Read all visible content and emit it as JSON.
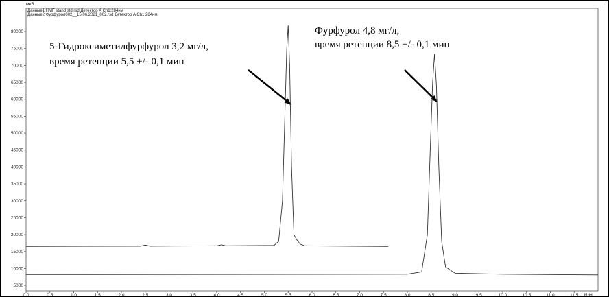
{
  "chart_data": {
    "type": "line",
    "y_label": "мкВ",
    "x_label": "мин",
    "xlim": [
      0,
      12.0
    ],
    "ylim": [
      3400,
      86900
    ],
    "xticks": [
      {
        "value": 0,
        "label": "0.0"
      },
      {
        "value": 0.5,
        "label": "0.5"
      },
      {
        "value": 1,
        "label": "1.0"
      },
      {
        "value": 1.5,
        "label": "1.5"
      },
      {
        "value": 2,
        "label": "2.0"
      },
      {
        "value": 2.5,
        "label": "2.5"
      },
      {
        "value": 3,
        "label": "3.0"
      },
      {
        "value": 3.5,
        "label": "3.5"
      },
      {
        "value": 4,
        "label": "4.0"
      },
      {
        "value": 4.5,
        "label": "4.5"
      },
      {
        "value": 5,
        "label": "5.0"
      },
      {
        "value": 5.5,
        "label": "5.5"
      },
      {
        "value": 6,
        "label": "6.0"
      },
      {
        "value": 6.5,
        "label": "6.5"
      },
      {
        "value": 7,
        "label": "7.0"
      },
      {
        "value": 7.5,
        "label": "7.5"
      },
      {
        "value": 8,
        "label": "8.0"
      },
      {
        "value": 8.5,
        "label": "8.5"
      },
      {
        "value": 9,
        "label": "9.0"
      },
      {
        "value": 9.5,
        "label": "9.5"
      },
      {
        "value": 10,
        "label": "10.0"
      },
      {
        "value": 10.5,
        "label": "10.5"
      },
      {
        "value": 11,
        "label": "11.0"
      },
      {
        "value": 11.5,
        "label": "11.5"
      }
    ],
    "yticks": [
      5000,
      10000,
      15000,
      20000,
      25000,
      30000,
      35000,
      40000,
      45000,
      50000,
      55000,
      60000,
      65000,
      70000,
      75000,
      80000
    ],
    "series": [
      {
        "name": "Данные1:HMF stand std.rsd Детектор A Ch1:284нм",
        "color": "#333333",
        "x": [
          0,
          2.4,
          2.5,
          2.6,
          4.0,
          4.1,
          4.2,
          5.2,
          5.3,
          5.38,
          5.43,
          5.47,
          5.5,
          5.53,
          5.57,
          5.62,
          5.68,
          5.75,
          5.85,
          7.6
        ],
        "values": [
          16500,
          16600,
          16900,
          16600,
          16700,
          17000,
          16700,
          16800,
          18000,
          30000,
          55000,
          75000,
          81800,
          70000,
          40000,
          20000,
          18500,
          17200,
          16700,
          16500
        ]
      },
      {
        "name": "Данные2:Фурфурол002__15.06.2021_002.rsd Детектор A Ch1:284нм",
        "color": "#333333",
        "x": [
          0,
          8.0,
          8.3,
          8.42,
          8.48,
          8.53,
          8.57,
          8.61,
          8.66,
          8.72,
          8.8,
          9.0,
          10.0,
          12.0
        ],
        "values": [
          8200,
          8300,
          9000,
          20000,
          45000,
          65000,
          73400,
          64000,
          40000,
          18000,
          10500,
          8600,
          8300,
          8100
        ]
      }
    ],
    "annotations": [
      "5-Гидроксиметилфурфурол 3,2 мг/л,",
      "время ретенции 5,5 +/- 0,1 мин",
      "Фурфурол 4,8 мг/л,",
      "время ретенции 8,5 +/- 0,1 мин"
    ]
  }
}
